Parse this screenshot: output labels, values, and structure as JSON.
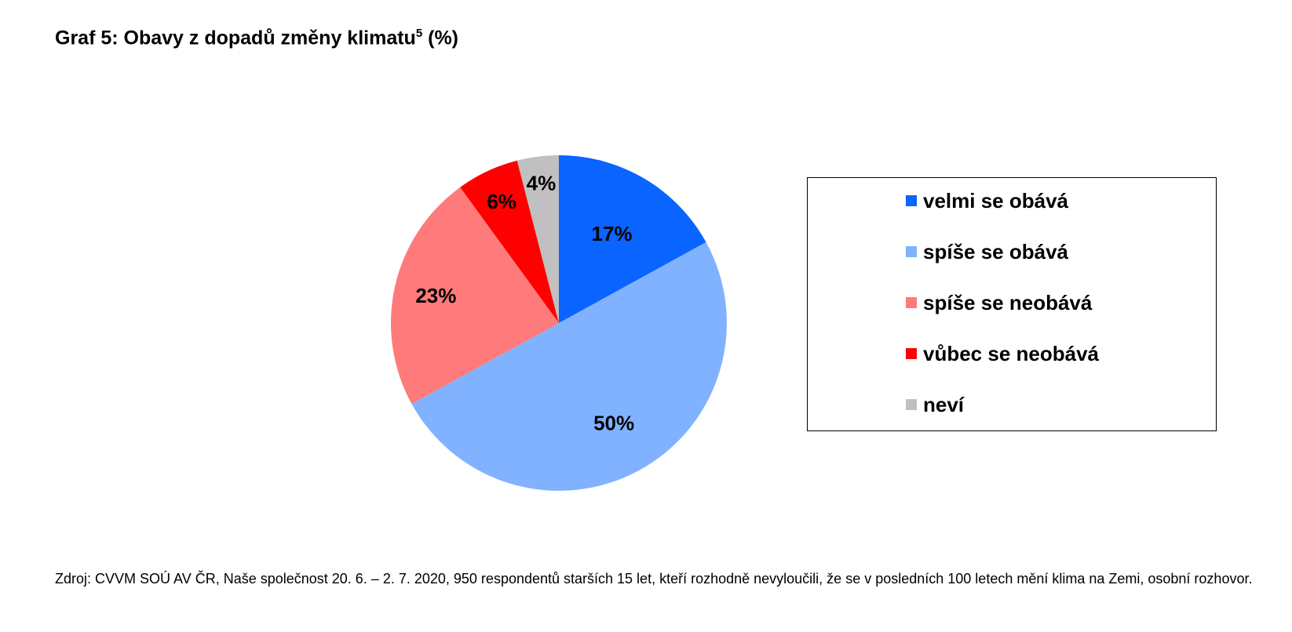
{
  "title": "Graf 5: Obavy z dopadů změny klimatu",
  "title_superscript": "5",
  "title_suffix": "(%)",
  "chart_data": {
    "type": "pie",
    "slices": [
      {
        "label": "velmi se obává",
        "value": 17,
        "value_label": "17%",
        "color": "#0A64FF"
      },
      {
        "label": "spíše se obává",
        "value": 50,
        "value_label": "50%",
        "color": "#80B2FF"
      },
      {
        "label": "spíše se neobává",
        "value": 23,
        "value_label": "23%",
        "color": "#FF7A7A"
      },
      {
        "label": "vůbec se neobává",
        "value": 6,
        "value_label": "6%",
        "color": "#FF0000"
      },
      {
        "label": "neví",
        "value": 4,
        "value_label": "4%",
        "color": "#C0C0C0"
      }
    ],
    "legend_placement": "right"
  },
  "source": "Zdroj: CVVM SOÚ AV ČR, Naše společnost 20. 6. – 2. 7. 2020, 950 respondentů starších 15 let, kteří rozhodně nevyloučili, že se v posledních 100 letech mění klima na Zemi, osobní rozhovor."
}
